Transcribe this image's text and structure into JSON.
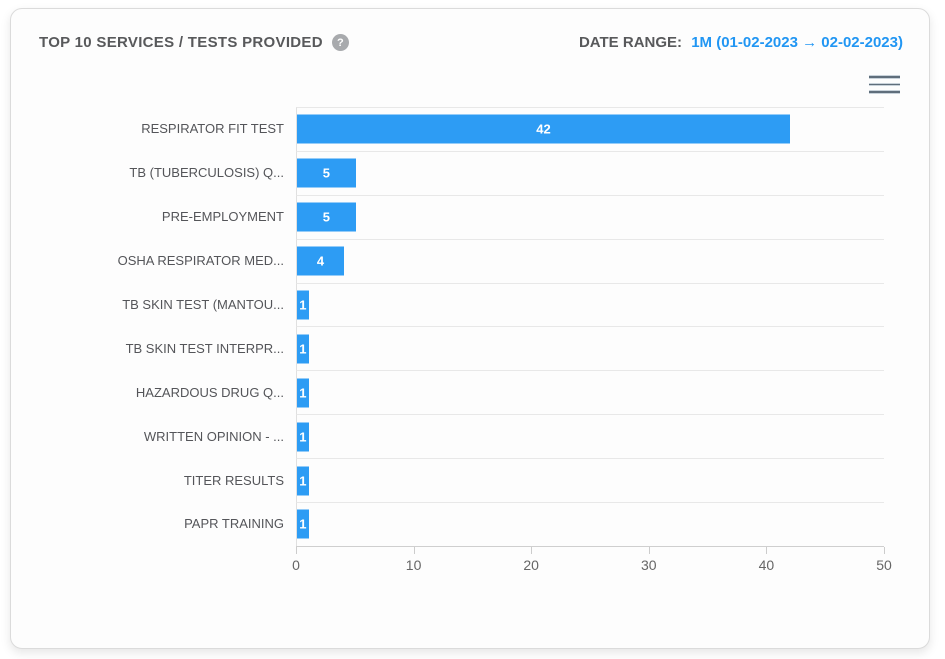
{
  "card": {
    "title": "TOP 10 SERVICES / TESTS PROVIDED",
    "help_glyph": "?",
    "date_range_label": "DATE RANGE:",
    "date_range_value": "1M (01-02-2023 → 02-02-2023)"
  },
  "colors": {
    "bar": "#2d9cf4",
    "accent_blue": "#2196f3",
    "title_gray": "#58595b",
    "gridline": "#e8e8e8",
    "axis_line": "#cfcfcf"
  },
  "chart_data": {
    "type": "bar",
    "orientation": "horizontal",
    "title": "TOP 10 SERVICES / TESTS PROVIDED",
    "categories": [
      "RESPIRATOR FIT TEST",
      "TB (TUBERCULOSIS) Q...",
      "PRE-EMPLOYMENT",
      "OSHA RESPIRATOR MED...",
      "TB SKIN TEST (MANTOU...",
      "TB SKIN TEST INTERPR...",
      "HAZARDOUS DRUG Q...",
      "WRITTEN OPINION - ...",
      "TITER RESULTS",
      "PAPR TRAINING"
    ],
    "values": [
      42,
      5,
      5,
      4,
      1,
      1,
      1,
      1,
      1,
      1
    ],
    "xticks": [
      0,
      10,
      20,
      30,
      40,
      50
    ],
    "xlim": [
      0,
      50
    ],
    "xlabel": "",
    "ylabel": "",
    "grid": true,
    "legend": "none",
    "data_labels": "inside-center-white"
  }
}
